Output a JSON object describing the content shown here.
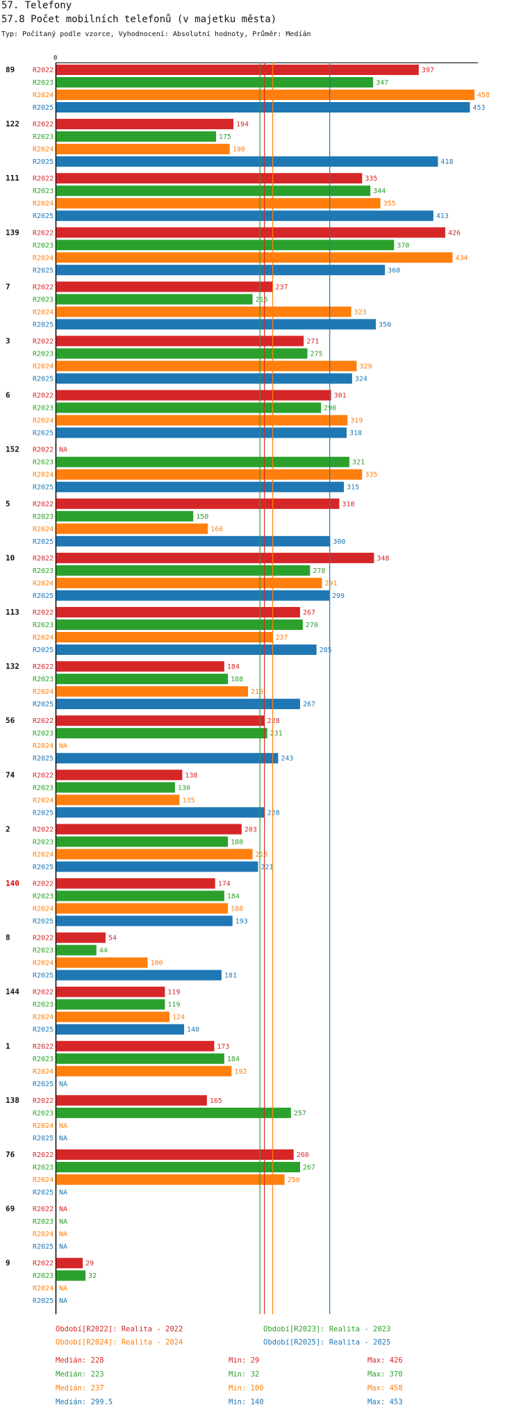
{
  "header": {
    "section": "57. Telefony",
    "title": "57.8 Počet mobilních telefonů (v majetku města)",
    "subtitle": "Typ: Počítaný podle vzorce, Vyhodnocení: Absolutní hodnoty, Průměr: Medián"
  },
  "colors": {
    "R2022": "#d62728",
    "R2023": "#2ca02c",
    "R2024": "#ff7f0e",
    "R2025": "#1f77b4",
    "highlight": "#e00000"
  },
  "chart_data": {
    "type": "bar",
    "orientation": "horizontal",
    "axis_zero_label": "0",
    "xlim": [
      0,
      458
    ],
    "series_names": [
      "R2022",
      "R2023",
      "R2024",
      "R2025"
    ],
    "na_label": "NA",
    "groups": [
      {
        "label": "89",
        "values": [
          397,
          347,
          458,
          453
        ]
      },
      {
        "label": "122",
        "values": [
          194,
          175,
          190,
          418
        ]
      },
      {
        "label": "111",
        "values": [
          335,
          344,
          355,
          413
        ]
      },
      {
        "label": "139",
        "values": [
          426,
          370,
          434,
          360
        ]
      },
      {
        "label": "7",
        "values": [
          237,
          215,
          323,
          350
        ]
      },
      {
        "label": "3",
        "values": [
          271,
          275,
          329,
          324
        ]
      },
      {
        "label": "6",
        "values": [
          301,
          290,
          319,
          318
        ]
      },
      {
        "label": "152",
        "values": [
          null,
          321,
          335,
          315
        ]
      },
      {
        "label": "5",
        "values": [
          310,
          150,
          166,
          300
        ]
      },
      {
        "label": "10",
        "values": [
          348,
          278,
          291,
          299
        ]
      },
      {
        "label": "113",
        "values": [
          267,
          270,
          237,
          285
        ]
      },
      {
        "label": "132",
        "values": [
          184,
          188,
          210,
          267
        ]
      },
      {
        "label": "56",
        "values": [
          228,
          231,
          null,
          243
        ]
      },
      {
        "label": "74",
        "values": [
          138,
          130,
          135,
          228
        ]
      },
      {
        "label": "2",
        "values": [
          203,
          188,
          215,
          221
        ]
      },
      {
        "label": "140",
        "highlight": true,
        "values": [
          174,
          184,
          188,
          193
        ]
      },
      {
        "label": "8",
        "values": [
          54,
          44,
          100,
          181
        ]
      },
      {
        "label": "144",
        "values": [
          119,
          119,
          124,
          140
        ]
      },
      {
        "label": "1",
        "values": [
          173,
          184,
          192,
          null
        ]
      },
      {
        "label": "138",
        "values": [
          165,
          257,
          null,
          null
        ]
      },
      {
        "label": "76",
        "values": [
          260,
          267,
          250,
          null
        ]
      },
      {
        "label": "69",
        "values": [
          null,
          null,
          null,
          null
        ]
      },
      {
        "label": "9",
        "values": [
          29,
          32,
          null,
          null
        ]
      }
    ],
    "median_lines": [
      {
        "series": "R2022",
        "value": 228
      },
      {
        "series": "R2023",
        "value": 223
      },
      {
        "series": "R2024",
        "value": 237
      },
      {
        "series": "R2025",
        "value": 299.5
      }
    ],
    "legend": [
      {
        "series": "R2022",
        "text": "Období[R2022]: Realita - 2022"
      },
      {
        "series": "R2023",
        "text": "Období[R2023]: Realita - 2023"
      },
      {
        "series": "R2024",
        "text": "Období[R2024]: Realita - 2024"
      },
      {
        "series": "R2025",
        "text": "Období[R2025]: Realita - 2025"
      }
    ],
    "stats": [
      {
        "series": "R2022",
        "median": "Medián: 228",
        "min": "Min: 29",
        "max": "Max: 426"
      },
      {
        "series": "R2023",
        "median": "Medián: 223",
        "min": "Min: 32",
        "max": "Max: 370"
      },
      {
        "series": "R2024",
        "median": "Medián: 237",
        "min": "Min: 100",
        "max": "Max: 458"
      },
      {
        "series": "R2025",
        "median": "Medián: 299.5",
        "min": "Min: 140",
        "max": "Max: 453"
      }
    ]
  }
}
